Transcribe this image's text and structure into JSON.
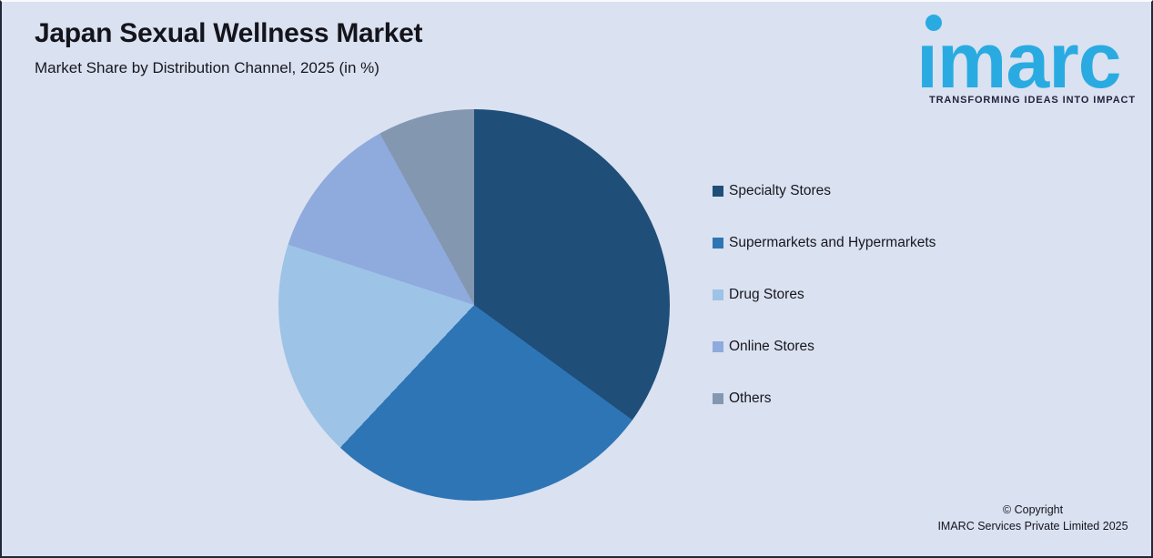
{
  "header": {
    "title": "Japan Sexual Wellness Market",
    "subtitle": "Market Share by Distribution Channel, 2025 (in %)"
  },
  "logo": {
    "wordmark": "imarc",
    "tagline": "TRANSFORMING IDEAS INTO IMPACT",
    "brand_color": "#29ABE2",
    "tagline_color": "#23233D"
  },
  "footer": {
    "copyright_line1": "© Copyright",
    "copyright_line2": "IMARC Services Private Limited 2025"
  },
  "chart_data": {
    "type": "pie",
    "title": "Japan Sexual Wellness Market",
    "subtitle": "Market Share by Distribution Channel, 2025 (in %)",
    "labels": [
      "Specialty Stores",
      "Supermarkets and Hypermarkets",
      "Drug Stores",
      "Online Stores",
      "Others"
    ],
    "values": [
      35,
      27,
      18,
      12,
      8
    ],
    "unit": "%",
    "colors": [
      "#1F4E79",
      "#2E75B6",
      "#9DC3E6",
      "#8FAADC",
      "#8497B0"
    ],
    "start_angle_deg": 0,
    "direction": "clockwise",
    "legend_position": "right",
    "data_labels_visible": false,
    "background_color": "#DAE1F0"
  }
}
